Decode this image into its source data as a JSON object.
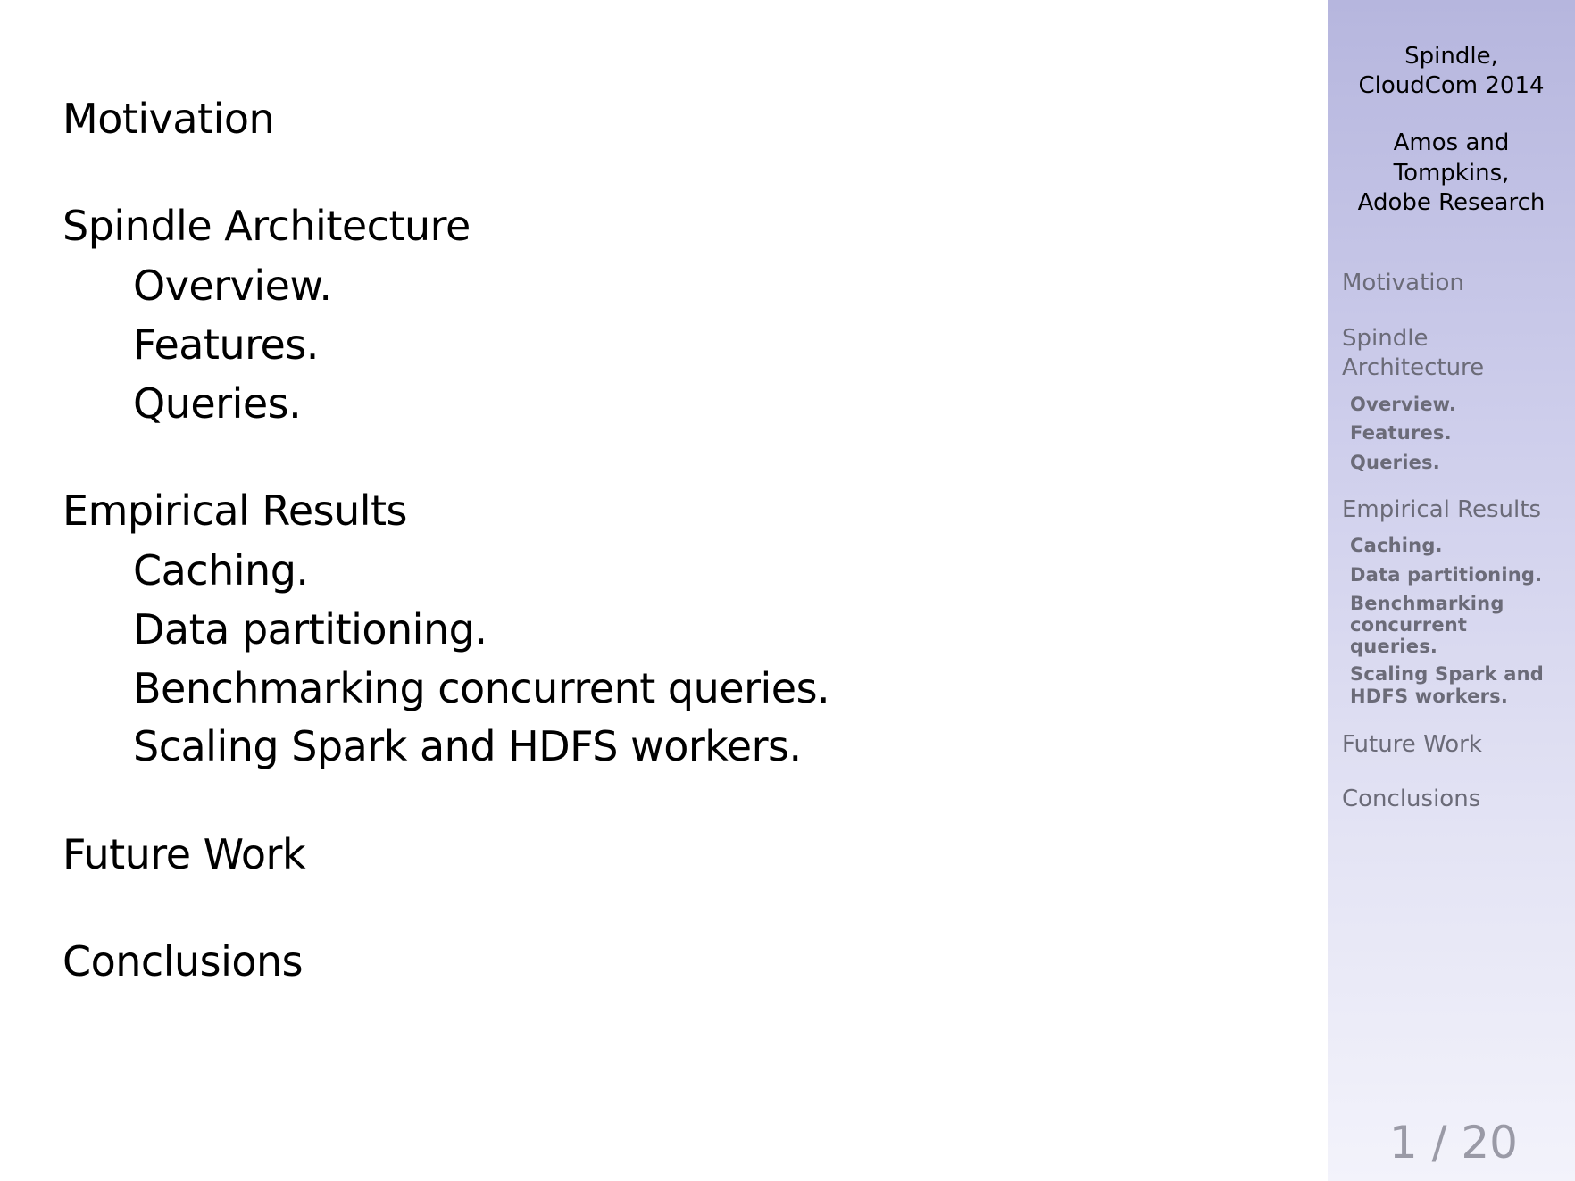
{
  "toc": {
    "motivation": "Motivation",
    "architecture": "Spindle Architecture",
    "arch_overview": "Overview.",
    "arch_features": "Features.",
    "arch_queries": "Queries.",
    "results": "Empirical Results",
    "res_caching": "Caching.",
    "res_partitioning": "Data partitioning.",
    "res_benchmarking": "Benchmarking concurrent queries.",
    "res_scaling": "Scaling Spark and HDFS workers.",
    "future": "Future Work",
    "conclusions": "Conclusions"
  },
  "sidebar": {
    "title_line1": "Spindle,",
    "title_line2": "CloudCom 2014",
    "authors_line1": "Amos and",
    "authors_line2": "Tompkins,",
    "authors_line3": "Adobe Research",
    "motivation": "Motivation",
    "architecture_line1": "Spindle",
    "architecture_line2": "Architecture",
    "arch_overview": "Overview.",
    "arch_features": "Features.",
    "arch_queries": "Queries.",
    "results": "Empirical Results",
    "res_caching": "Caching.",
    "res_partitioning": "Data partitioning.",
    "res_benchmarking_line1": "Benchmarking",
    "res_benchmarking_line2": "concurrent",
    "res_benchmarking_line3": "queries.",
    "res_scaling_line1": "Scaling Spark and",
    "res_scaling_line2": "HDFS workers.",
    "future": "Future Work",
    "conclusions": "Conclusions"
  },
  "footer": {
    "page_number": "1 / 20"
  }
}
